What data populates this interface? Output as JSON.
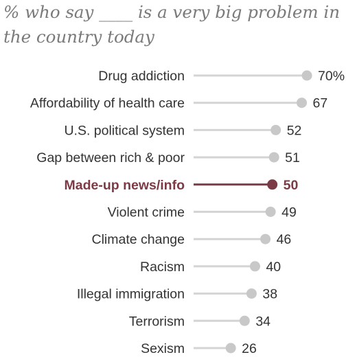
{
  "title": "% who say ____ is a very big problem in the country today",
  "chart_data": {
    "type": "lollipop",
    "title": "% who say ____ is a very big problem in the country today",
    "xlabel": "",
    "ylabel": "",
    "value_suffix_first": "%",
    "highlighted_category": "Made-up news/info",
    "colors": {
      "default_line": "#d4d4d4",
      "default_dot": "#c8c8c8",
      "highlight": "#7b3b46",
      "text": "#333333"
    },
    "categories": [
      "Drug addiction",
      "Affordability of health care",
      "U.S. political system",
      "Gap between rich & poor",
      "Made-up news/info",
      "Violent crime",
      "Climate change",
      "Racism",
      "Illegal immigration",
      "Terrorism",
      "Sexism"
    ],
    "values": [
      70,
      67,
      52,
      51,
      50,
      49,
      46,
      40,
      38,
      34,
      26
    ]
  }
}
